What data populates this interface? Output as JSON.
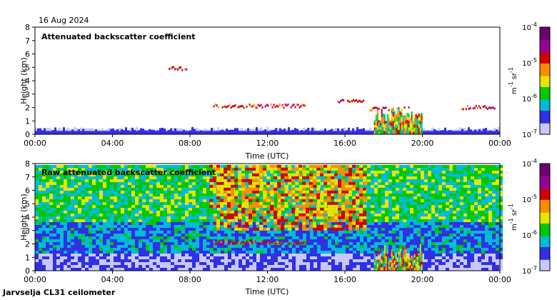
{
  "date": "16 Aug 2024",
  "footer": "Jarvselja CL31 ceilometer",
  "colors": {
    "scale": [
      "#ffffff",
      "#c8c8ff",
      "#3030e6",
      "#00bcd4",
      "#00c800",
      "#e6e600",
      "#ff8c00",
      "#d20000",
      "#960096",
      "#6e006e"
    ]
  },
  "chart_data": [
    {
      "type": "heatmap",
      "title": "Attenuated backscatter coefficient",
      "xlabel": "Time (UTC)",
      "ylabel": "Height (km)",
      "x_tick_labels": [
        "00:00",
        "04:00",
        "08:00",
        "12:00",
        "16:00",
        "20:00",
        "00:00"
      ],
      "x_range_hours": [
        0,
        24
      ],
      "y_ticks": [
        "0",
        "1",
        "2",
        "3",
        "4",
        "5",
        "6",
        "7",
        "8"
      ],
      "ylim": [
        0,
        8
      ],
      "colorbar": {
        "label_unit": "m",
        "label_unit_exp": "-1",
        "label_unit2": "sr",
        "label_unit2_exp": "-1",
        "ticks": [
          {
            "base": "10",
            "exp": "-4"
          },
          {
            "base": "10",
            "exp": "-5"
          },
          {
            "base": "10",
            "exp": "-6"
          },
          {
            "base": "10",
            "exp": "-7"
          }
        ]
      },
      "features": [
        {
          "kind": "surface_layer",
          "hours": [
            0,
            24
          ],
          "height_km": [
            0,
            0.5
          ]
        },
        {
          "kind": "cloud_layer",
          "hours": [
            9.2,
            14.0
          ],
          "height_km": 2.1
        },
        {
          "kind": "cloud_layer",
          "hours": [
            6.9,
            7.8
          ],
          "height_km": 4.9
        },
        {
          "kind": "cloud_layer",
          "hours": [
            15.6,
            17.0
          ],
          "height_km": 2.5
        },
        {
          "kind": "cloud_layer",
          "hours": [
            17.2,
            19.3
          ],
          "height_km": 1.9
        },
        {
          "kind": "precipitation",
          "hours": [
            17.5,
            20.0
          ],
          "height_km": [
            0,
            2.0
          ]
        },
        {
          "kind": "cloud_layer",
          "hours": [
            22.0,
            23.8
          ],
          "height_km": 2.0
        }
      ]
    },
    {
      "type": "heatmap",
      "title": "Raw attenuated backscatter coefficient",
      "xlabel": "Time (UTC)",
      "ylabel": "Height (km)",
      "x_tick_labels": [
        "00:00",
        "04:00",
        "08:00",
        "12:00",
        "16:00",
        "20:00",
        "00:00"
      ],
      "x_range_hours": [
        0,
        24
      ],
      "y_ticks": [
        "0",
        "1",
        "2",
        "3",
        "4",
        "5",
        "6",
        "7",
        "8"
      ],
      "ylim": [
        0,
        8
      ],
      "colorbar": {
        "label_unit": "m",
        "label_unit_exp": "-1",
        "label_unit2": "sr",
        "label_unit2_exp": "-1",
        "ticks": [
          {
            "base": "10",
            "exp": "-4"
          },
          {
            "base": "10",
            "exp": "-5"
          },
          {
            "base": "10",
            "exp": "-6"
          },
          {
            "base": "10",
            "exp": "-7"
          }
        ]
      },
      "features": [
        {
          "kind": "noise_field",
          "hours": [
            0,
            24
          ],
          "height_km": [
            0,
            7.7
          ]
        },
        {
          "kind": "high_noise",
          "hours": [
            9.0,
            17.0
          ],
          "height_km": [
            3.0,
            7.7
          ]
        },
        {
          "kind": "cloud_layer",
          "hours": [
            9.2,
            14.0
          ],
          "height_km": 2.1
        },
        {
          "kind": "precipitation",
          "hours": [
            17.5,
            20.0
          ],
          "height_km": [
            0,
            2.0
          ]
        }
      ]
    }
  ]
}
